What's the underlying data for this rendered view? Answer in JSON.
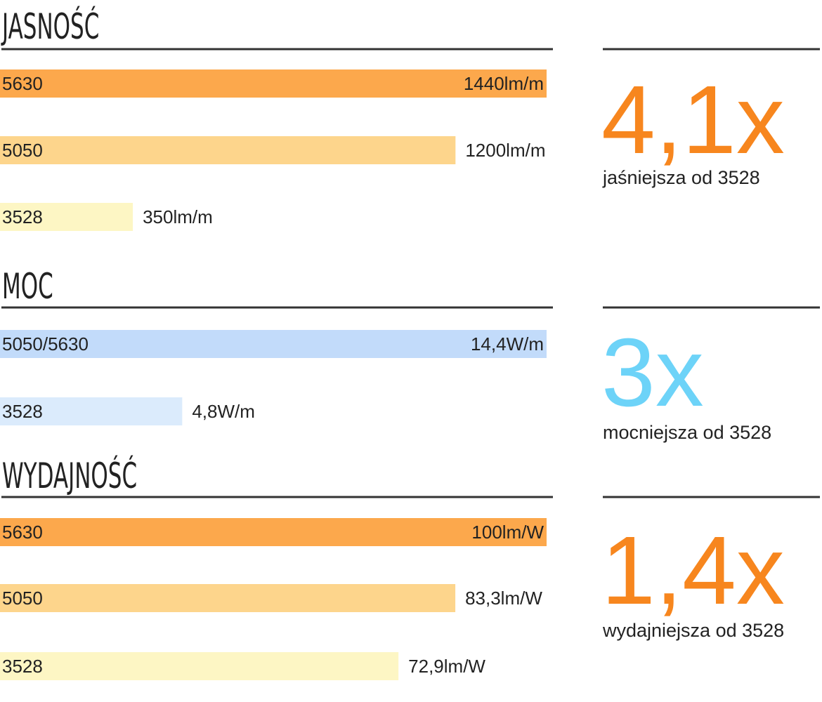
{
  "chart_data": [
    {
      "type": "bar",
      "title": "JASNOŚĆ",
      "categories": [
        "5630",
        "5050",
        "3528"
      ],
      "values": [
        1440,
        1200,
        350
      ],
      "value_labels": [
        "1440lm/m",
        "1200lm/m",
        "350lm/m"
      ],
      "colors": [
        "#fca84c",
        "#fdd58c",
        "#fdf6c4"
      ],
      "callout": "4,1x",
      "callout_text": "jaśniejsza od 3528",
      "callout_color": "#f7861e"
    },
    {
      "type": "bar",
      "title": "MOC",
      "categories": [
        "5050/5630",
        "3528"
      ],
      "values": [
        14.4,
        4.8
      ],
      "value_labels": [
        "14,4W/m",
        "4,8W/m"
      ],
      "colors": [
        "#c2dbfa",
        "#dbebfc"
      ],
      "callout": "3x",
      "callout_text": "mocniejsza od 3528",
      "callout_color": "#6dd3f8"
    },
    {
      "type": "bar",
      "title": "WYDAJNOŚĆ",
      "categories": [
        "5630",
        "5050",
        "3528"
      ],
      "values": [
        100,
        83.3,
        72.9
      ],
      "value_labels": [
        "100lm/W",
        "83,3lm/W",
        "72,9lm/W"
      ],
      "colors": [
        "#fca84c",
        "#fdd58c",
        "#fdf6c4"
      ],
      "callout": "1,4x",
      "callout_text": "wydajniejsza od 3528",
      "callout_color": "#f7861e"
    }
  ]
}
